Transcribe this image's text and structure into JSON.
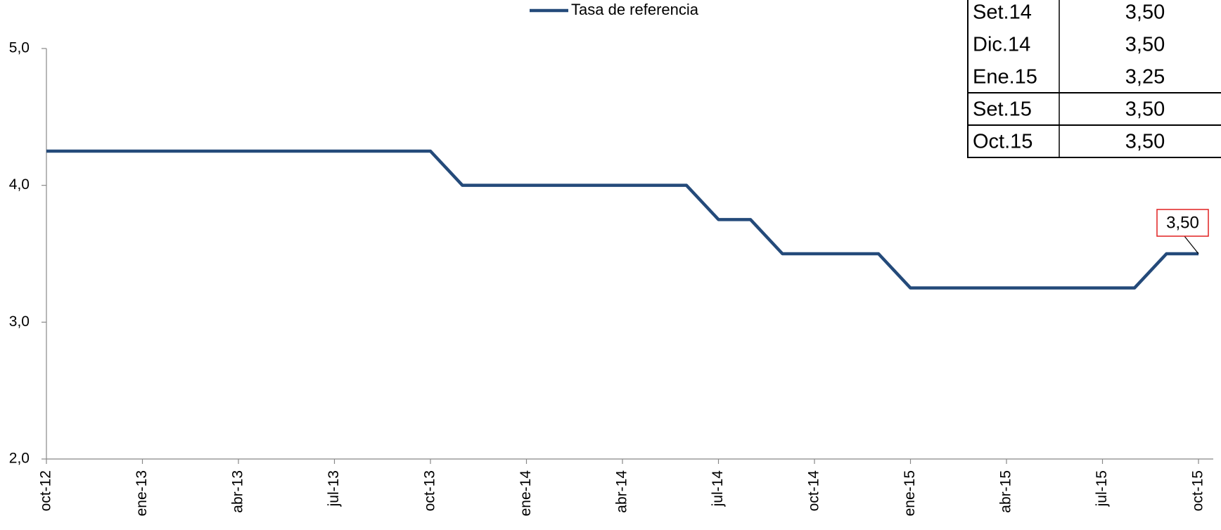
{
  "chart_data": {
    "type": "line",
    "categories": [
      "oct-12",
      null,
      null,
      "ene-13",
      null,
      null,
      "abr-13",
      null,
      null,
      "jul-13",
      null,
      null,
      "oct-13",
      null,
      null,
      "ene-14",
      null,
      null,
      "abr-14",
      null,
      null,
      "jul-14",
      null,
      null,
      "oct-14",
      null,
      null,
      "ene-15",
      null,
      null,
      "abr-15",
      null,
      null,
      "jul-15",
      null,
      null,
      "oct-15"
    ],
    "series": [
      {
        "name": "Tasa de referencia",
        "color": "#244a7a",
        "values": [
          4.25,
          4.25,
          4.25,
          4.25,
          4.25,
          4.25,
          4.25,
          4.25,
          4.25,
          4.25,
          4.25,
          4.25,
          4.25,
          4.0,
          4.0,
          4.0,
          4.0,
          4.0,
          4.0,
          4.0,
          4.0,
          3.75,
          3.75,
          3.5,
          3.5,
          3.5,
          3.5,
          3.25,
          3.25,
          3.25,
          3.25,
          3.25,
          3.25,
          3.25,
          3.25,
          3.5,
          3.5
        ]
      }
    ],
    "ylim": [
      2,
      5
    ],
    "yticks": [
      {
        "value": 2,
        "label": "2,0"
      },
      {
        "value": 3,
        "label": "3,0"
      },
      {
        "value": 4,
        "label": "4,0"
      },
      {
        "value": 5,
        "label": "5,0"
      }
    ],
    "annotation": "3,50",
    "legend": "top",
    "table": {
      "rows": [
        [
          "Set.14",
          "3,50"
        ],
        [
          "Dic.14",
          "3,50"
        ],
        [
          "Ene.15",
          "3,25"
        ],
        [
          "Set.15",
          "3,50"
        ],
        [
          "Oct.15",
          "3,50"
        ]
      ]
    }
  }
}
